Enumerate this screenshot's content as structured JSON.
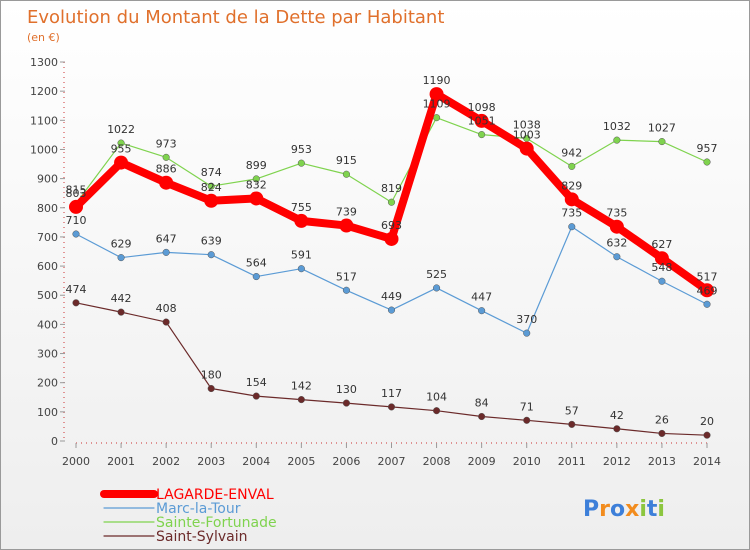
{
  "chart_data": {
    "type": "line",
    "title": "Evolution du Montant de la Dette par Habitant",
    "subtitle": "(en €)",
    "x": [
      "2000",
      "2001",
      "2002",
      "2003",
      "2004",
      "2005",
      "2006",
      "2007",
      "2008",
      "2009",
      "2010",
      "2011",
      "2012",
      "2013",
      "2014"
    ],
    "ylim": [
      0,
      1300
    ],
    "yticks": [
      0,
      100,
      200,
      300,
      400,
      500,
      600,
      700,
      800,
      900,
      1000,
      1100,
      1200,
      1300
    ],
    "grid": false,
    "legend_position": "bottom-left",
    "series": [
      {
        "name": "LAGARDE-ENVAL",
        "color": "#ff0000",
        "values": [
          803,
          955,
          886,
          824,
          832,
          755,
          739,
          693,
          1190,
          1098,
          1003,
          829,
          735,
          627,
          517
        ]
      },
      {
        "name": "Marc-la-Tour",
        "color": "#5b9bd5",
        "values": [
          710,
          629,
          647,
          639,
          564,
          591,
          517,
          449,
          525,
          447,
          370,
          735,
          632,
          548,
          469
        ]
      },
      {
        "name": "Sainte-Fortunade",
        "color": "#7fd34e",
        "values": [
          815,
          1022,
          973,
          874,
          899,
          953,
          915,
          819,
          1109,
          1051,
          1038,
          942,
          1032,
          1027,
          957
        ]
      },
      {
        "name": "Saint-Sylvain",
        "color": "#6b2a2a",
        "values": [
          474,
          442,
          408,
          180,
          154,
          142,
          130,
          117,
          104,
          84,
          71,
          57,
          42,
          26,
          20
        ]
      }
    ]
  },
  "brand": {
    "letters": [
      "P",
      "r",
      "o",
      "x",
      "i",
      "t",
      "i"
    ],
    "colors": [
      "#3d7fd9",
      "#f28c1e",
      "#3d7fd9",
      "#f28c1e",
      "#8cc63f",
      "#3d7fd9",
      "#8cc63f"
    ]
  }
}
